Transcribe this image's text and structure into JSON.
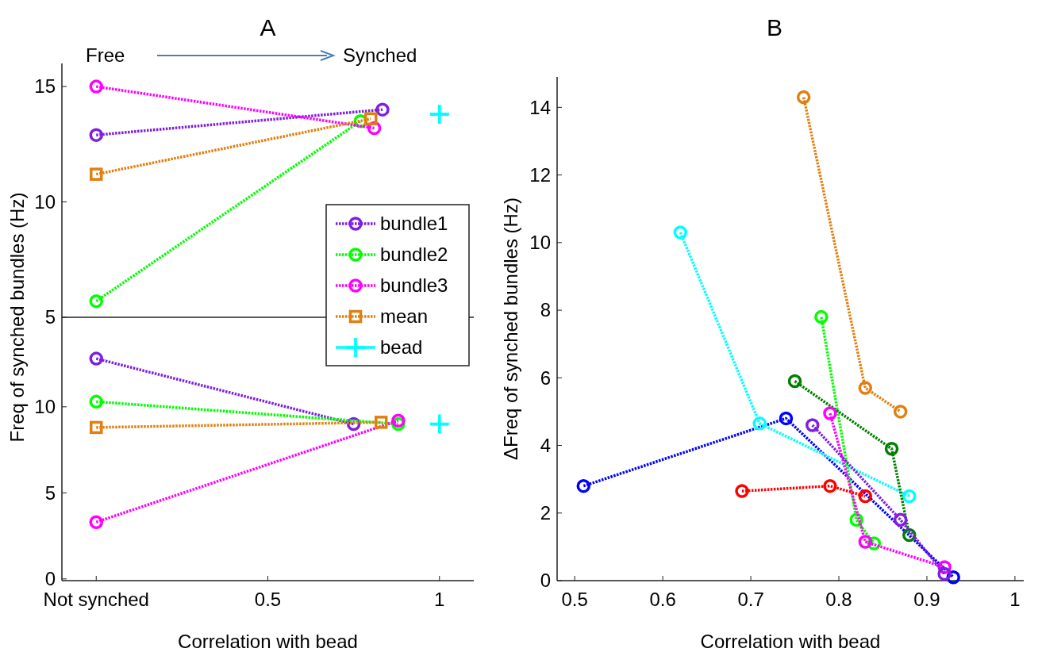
{
  "chart_data": [
    {
      "type": "line",
      "title": "A",
      "annotations": [
        "Free",
        "Synched"
      ],
      "ylabel": "Freq of synched bundles (Hz)",
      "xlim": [
        -0.1,
        1.1
      ],
      "ylim": [
        5,
        16
      ],
      "yticks": [
        5,
        10,
        15
      ],
      "tick_labels": "y",
      "marker": "circle",
      "line_style": "dotted",
      "legend": "bottom right",
      "series": [
        {
          "name": "bundle1",
          "color": "#7f1fdf",
          "x": [
            0,
            0.834
          ],
          "values": [
            12.9,
            14.0
          ]
        },
        {
          "name": "bundle2",
          "color": "#00ff00",
          "x": [
            0,
            0.77
          ],
          "values": [
            5.7,
            13.5
          ]
        },
        {
          "name": "bundle3",
          "color": "#ff00ff",
          "x": [
            0,
            0.81
          ],
          "values": [
            15.0,
            13.2
          ]
        },
        {
          "name": "mean",
          "color": "#e08010",
          "marker": "square",
          "x": [
            0,
            0.8
          ],
          "values": [
            11.2,
            13.6
          ]
        },
        {
          "name": "bead",
          "type": "scatter",
          "color": "#00ffff",
          "marker": "cross",
          "x": [
            1
          ],
          "values": [
            13.8
          ]
        }
      ]
    },
    {
      "type": "line",
      "xlabel": "Correlation with bead",
      "xlim": [
        -0.1,
        1.1
      ],
      "xticks": [
        {
          "value": 0,
          "label": "Not synched"
        },
        0.5,
        1
      ],
      "ylim": [
        -0.1,
        15.2
      ],
      "yticks": [
        0,
        5,
        10
      ],
      "marker": "circle",
      "line_style": "dotted",
      "series": [
        {
          "color": "#7f1fdf",
          "x": [
            0,
            0.75
          ],
          "values": [
            12.8,
            9.0
          ]
        },
        {
          "color": "#00ff00",
          "x": [
            0,
            0.88
          ],
          "values": [
            10.3,
            9.0
          ]
        },
        {
          "color": "#ff00ff",
          "x": [
            0,
            0.88
          ],
          "values": [
            3.3,
            9.2
          ]
        },
        {
          "color": "#e08010",
          "marker": "square",
          "x": [
            0,
            0.83
          ],
          "values": [
            8.8,
            9.1
          ]
        },
        {
          "type": "scatter",
          "color": "#00ffff",
          "marker": "cross",
          "x": [
            1
          ],
          "values": [
            9.0
          ]
        }
      ]
    },
    {
      "type": "line",
      "title": "B",
      "xlabel": "Correlation with bead",
      "ylabel": "ΔFreq of synched bundles  (Hz)",
      "xlim": [
        0.48,
        1.01
      ],
      "xticks": [
        0.5,
        0.6,
        0.7,
        0.8,
        0.9,
        1
      ],
      "ylim": [
        0,
        14.9
      ],
      "yticks": [
        0,
        2,
        4,
        6,
        8,
        10,
        12,
        14
      ],
      "marker": "circle",
      "line_style": "dotted",
      "series": [
        {
          "color": "#0000ff",
          "x": [
            0.51,
            0.74,
            0.93
          ],
          "values": [
            2.8,
            4.8,
            0.1
          ]
        },
        {
          "color": "#00ffff",
          "x": [
            0.62,
            0.71,
            0.88
          ],
          "values": [
            10.3,
            4.65,
            2.5
          ]
        },
        {
          "color": "#e08010",
          "x": [
            0.76,
            0.83,
            0.87
          ],
          "values": [
            14.3,
            5.7,
            5.0
          ]
        },
        {
          "color": "#00ff00",
          "x": [
            0.78,
            0.82,
            0.84
          ],
          "values": [
            7.8,
            1.8,
            1.1
          ]
        },
        {
          "color": "#007f00",
          "x": [
            0.75,
            0.86,
            0.88
          ],
          "values": [
            5.9,
            3.9,
            1.35
          ]
        },
        {
          "color": "#ff00ff",
          "x": [
            0.79,
            0.83,
            0.92
          ],
          "values": [
            4.95,
            1.15,
            0.4
          ]
        },
        {
          "color": "#7f1fdf",
          "x": [
            0.77,
            0.87,
            0.92
          ],
          "values": [
            4.6,
            1.8,
            0.2
          ]
        },
        {
          "color": "#ff0000",
          "x": [
            0.69,
            0.79,
            0.83
          ],
          "values": [
            2.65,
            2.8,
            2.5
          ]
        }
      ]
    }
  ]
}
